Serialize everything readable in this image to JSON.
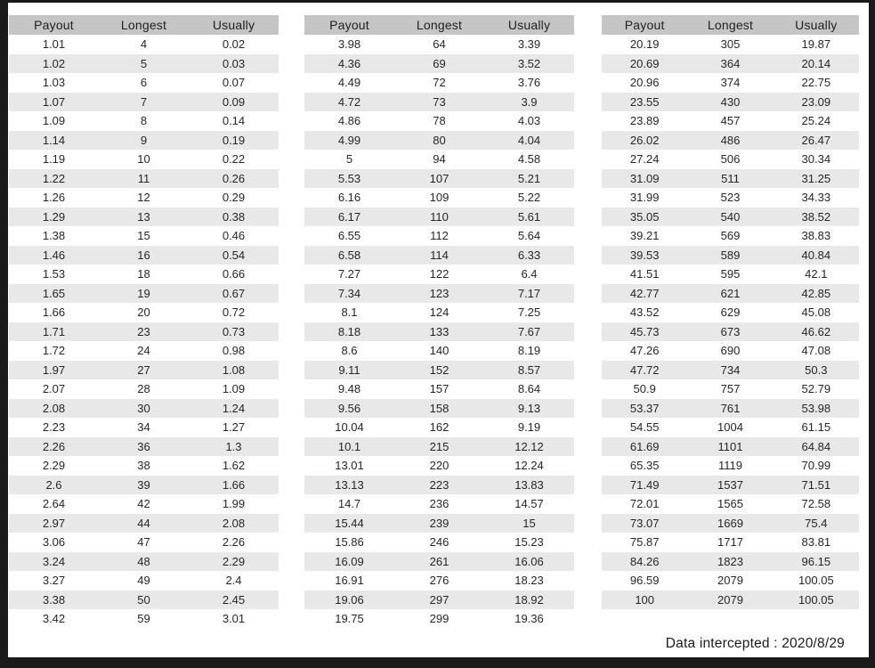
{
  "columns": [
    "Payout",
    "Longest",
    "Usually"
  ],
  "colors": {
    "frame": "#1a1a1a",
    "header_bg": "#c5c5c5",
    "stripe_bg": "#e8e8e8",
    "text": "#262626",
    "page_bg": "#ffffff"
  },
  "footer": {
    "text": "Data intercepted : 2020/8/29"
  },
  "tables": [
    {
      "name": "payout-table-1",
      "rows": [
        [
          "1.01",
          "4",
          "0.02"
        ],
        [
          "1.02",
          "5",
          "0.03"
        ],
        [
          "1.03",
          "6",
          "0.07"
        ],
        [
          "1.07",
          "7",
          "0.09"
        ],
        [
          "1.09",
          "8",
          "0.14"
        ],
        [
          "1.14",
          "9",
          "0.19"
        ],
        [
          "1.19",
          "10",
          "0.22"
        ],
        [
          "1.22",
          "11",
          "0.26"
        ],
        [
          "1.26",
          "12",
          "0.29"
        ],
        [
          "1.29",
          "13",
          "0.38"
        ],
        [
          "1.38",
          "15",
          "0.46"
        ],
        [
          "1.46",
          "16",
          "0.54"
        ],
        [
          "1.53",
          "18",
          "0.66"
        ],
        [
          "1.65",
          "19",
          "0.67"
        ],
        [
          "1.66",
          "20",
          "0.72"
        ],
        [
          "1.71",
          "23",
          "0.73"
        ],
        [
          "1.72",
          "24",
          "0.98"
        ],
        [
          "1.97",
          "27",
          "1.08"
        ],
        [
          "2.07",
          "28",
          "1.09"
        ],
        [
          "2.08",
          "30",
          "1.24"
        ],
        [
          "2.23",
          "34",
          "1.27"
        ],
        [
          "2.26",
          "36",
          "1.3"
        ],
        [
          "2.29",
          "38",
          "1.62"
        ],
        [
          "2.6",
          "39",
          "1.66"
        ],
        [
          "2.64",
          "42",
          "1.99"
        ],
        [
          "2.97",
          "44",
          "2.08"
        ],
        [
          "3.06",
          "47",
          "2.26"
        ],
        [
          "3.24",
          "48",
          "2.29"
        ],
        [
          "3.27",
          "49",
          "2.4"
        ],
        [
          "3.38",
          "50",
          "2.45"
        ],
        [
          "3.42",
          "59",
          "3.01"
        ]
      ]
    },
    {
      "name": "payout-table-2",
      "rows": [
        [
          "3.98",
          "64",
          "3.39"
        ],
        [
          "4.36",
          "69",
          "3.52"
        ],
        [
          "4.49",
          "72",
          "3.76"
        ],
        [
          "4.72",
          "73",
          "3.9"
        ],
        [
          "4.86",
          "78",
          "4.03"
        ],
        [
          "4.99",
          "80",
          "4.04"
        ],
        [
          "5",
          "94",
          "4.58"
        ],
        [
          "5.53",
          "107",
          "5.21"
        ],
        [
          "6.16",
          "109",
          "5.22"
        ],
        [
          "6.17",
          "110",
          "5.61"
        ],
        [
          "6.55",
          "112",
          "5.64"
        ],
        [
          "6.58",
          "114",
          "6.33"
        ],
        [
          "7.27",
          "122",
          "6.4"
        ],
        [
          "7.34",
          "123",
          "7.17"
        ],
        [
          "8.1",
          "124",
          "7.25"
        ],
        [
          "8.18",
          "133",
          "7.67"
        ],
        [
          "8.6",
          "140",
          "8.19"
        ],
        [
          "9.11",
          "152",
          "8.57"
        ],
        [
          "9.48",
          "157",
          "8.64"
        ],
        [
          "9.56",
          "158",
          "9.13"
        ],
        [
          "10.04",
          "162",
          "9.19"
        ],
        [
          "10.1",
          "215",
          "12.12"
        ],
        [
          "13.01",
          "220",
          "12.24"
        ],
        [
          "13.13",
          "223",
          "13.83"
        ],
        [
          "14.7",
          "236",
          "14.57"
        ],
        [
          "15.44",
          "239",
          "15"
        ],
        [
          "15.86",
          "246",
          "15.23"
        ],
        [
          "16.09",
          "261",
          "16.06"
        ],
        [
          "16.91",
          "276",
          "18.23"
        ],
        [
          "19.06",
          "297",
          "18.92"
        ],
        [
          "19.75",
          "299",
          "19.36"
        ]
      ]
    },
    {
      "name": "payout-table-3",
      "rows": [
        [
          "20.19",
          "305",
          "19.87"
        ],
        [
          "20.69",
          "364",
          "20.14"
        ],
        [
          "20.96",
          "374",
          "22.75"
        ],
        [
          "23.55",
          "430",
          "23.09"
        ],
        [
          "23.89",
          "457",
          "25.24"
        ],
        [
          "26.02",
          "486",
          "26.47"
        ],
        [
          "27.24",
          "506",
          "30.34"
        ],
        [
          "31.09",
          "511",
          "31.25"
        ],
        [
          "31.99",
          "523",
          "34.33"
        ],
        [
          "35.05",
          "540",
          "38.52"
        ],
        [
          "39.21",
          "569",
          "38.83"
        ],
        [
          "39.53",
          "589",
          "40.84"
        ],
        [
          "41.51",
          "595",
          "42.1"
        ],
        [
          "42.77",
          "621",
          "42.85"
        ],
        [
          "43.52",
          "629",
          "45.08"
        ],
        [
          "45.73",
          "673",
          "46.62"
        ],
        [
          "47.26",
          "690",
          "47.08"
        ],
        [
          "47.72",
          "734",
          "50.3"
        ],
        [
          "50.9",
          "757",
          "52.79"
        ],
        [
          "53.37",
          "761",
          "53.98"
        ],
        [
          "54.55",
          "1004",
          "61.15"
        ],
        [
          "61.69",
          "1101",
          "64.84"
        ],
        [
          "65.35",
          "1119",
          "70.99"
        ],
        [
          "71.49",
          "1537",
          "71.51"
        ],
        [
          "72.01",
          "1565",
          "72.58"
        ],
        [
          "73.07",
          "1669",
          "75.4"
        ],
        [
          "75.87",
          "1717",
          "83.81"
        ],
        [
          "84.26",
          "1823",
          "96.15"
        ],
        [
          "96.59",
          "2079",
          "100.05"
        ],
        [
          "100",
          "2079",
          "100.05"
        ]
      ]
    }
  ]
}
